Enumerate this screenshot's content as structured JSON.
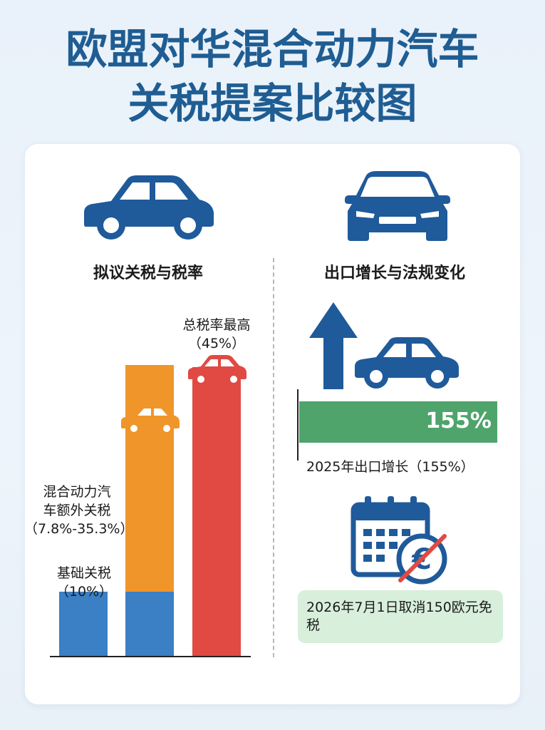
{
  "title": {
    "line1": "欧盟对华混合动力汽车",
    "line2": "关税提案比较图"
  },
  "left": {
    "heading": "拟议关税与税率",
    "icon": "car-side-icon"
  },
  "right": {
    "heading": "出口增长与法规变化",
    "icon": "car-front-icon",
    "growth_value_text": "155%",
    "growth_label": "2025年出口增长（155%）",
    "note": "2026年7月1日取消150欧元免税"
  },
  "chart_data": {
    "type": "bar",
    "categories": [
      "基础关税",
      "混合动力汽车额外关税",
      "总税率最高"
    ],
    "series": [
      {
        "name": "基础关税",
        "values": [
          10,
          10,
          0
        ],
        "color": "#3b7fc4"
      },
      {
        "name": "混合动力汽车额外关税",
        "values": [
          0,
          35.3,
          0
        ],
        "color": "#f0952a"
      },
      {
        "name": "总税率最高",
        "values": [
          0,
          0,
          45
        ],
        "color": "#e04a42"
      }
    ],
    "annotations": {
      "base_label": "基础关税",
      "base_value": "（10%）",
      "extra_label_line1": "混合动力汽",
      "extra_label_line2": "车额外关税",
      "extra_value": "（7.8%-35.3%）",
      "total_label": "总税率最高",
      "total_value": "（45%）"
    },
    "ylim": [
      0,
      50
    ]
  },
  "colors": {
    "title": "#1f5d92",
    "icon_blue": "#1f5a9a",
    "blue": "#3b7fc4",
    "orange": "#f0952a",
    "red": "#e04a42",
    "green": "#4ea46b",
    "note_bg": "#d8efdc"
  }
}
